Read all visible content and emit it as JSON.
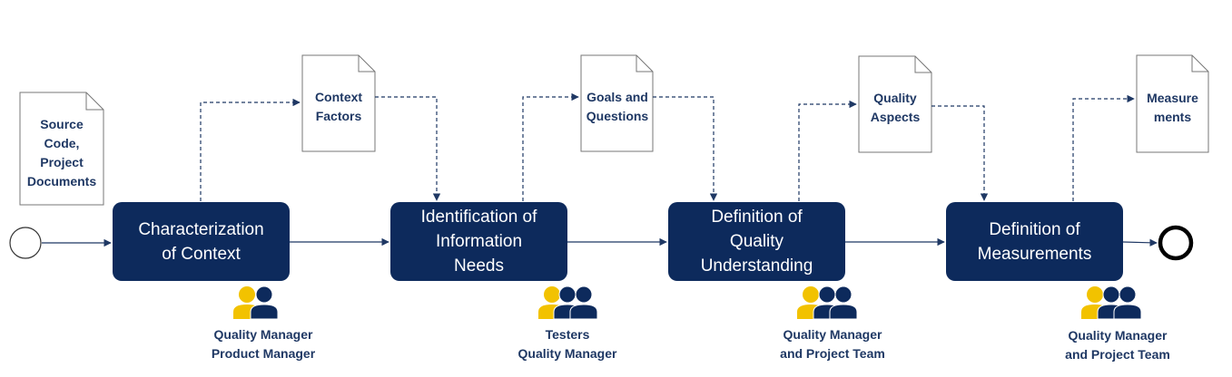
{
  "documents": {
    "source": "Source\nCode,\nProject\nDocuments",
    "context_factors": "Context\nFactors",
    "goals_questions": "Goals and\nQuestions",
    "quality_aspects": "Quality\nAspects",
    "measurements": "Measure\nments"
  },
  "steps": {
    "characterization": "Characterization\nof Context",
    "identification": "Identification of\nInformation\nNeeds",
    "definition_quality": "Definition of\nQuality\nUnderstanding",
    "definition_measurements": "Definition of\nMeasurements"
  },
  "roles": {
    "step1": "Quality Manager\nProduct Manager",
    "step2": "Testers\nQuality Manager",
    "step3": "Quality Manager\nand Project Team",
    "step4": "Quality Manager\nand Project Team"
  },
  "colors": {
    "navy": "#0d2a5c",
    "text_navy": "#1f3864",
    "gold": "#f2c200",
    "line": "#1f3864"
  },
  "icons": {
    "start": "start-event-circle",
    "end": "end-event-circle",
    "people": "people-group-icon",
    "document": "document-icon"
  }
}
